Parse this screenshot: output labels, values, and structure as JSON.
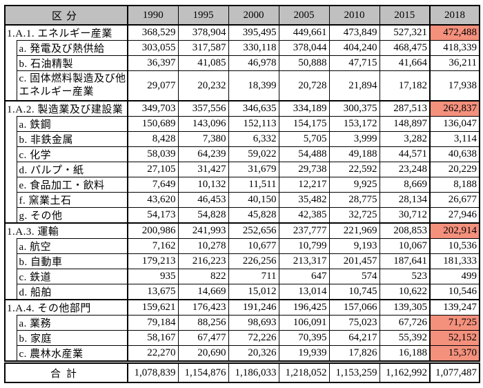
{
  "colors": {
    "header_bg": "#C0C0C0",
    "highlight_2018": "#F4917D",
    "border": "#000000"
  },
  "table": {
    "header": {
      "category_label": "区分",
      "years": [
        "1990",
        "1995",
        "2000",
        "2005",
        "2010",
        "2015",
        "2018"
      ]
    },
    "sections": [
      {
        "label": "1.A.1. エネルギー産業",
        "values": [
          "368,529",
          "378,904",
          "395,495",
          "449,661",
          "473,849",
          "527,321",
          "472,488"
        ],
        "highlight_2018": true,
        "subrows": [
          {
            "label": "a. 発電及び熱供給",
            "values": [
              "303,055",
              "317,587",
              "330,118",
              "378,044",
              "404,240",
              "468,475",
              "418,339"
            ],
            "highlight_2018": false
          },
          {
            "label": "b. 石油精製",
            "values": [
              "36,397",
              "41,085",
              "46,978",
              "50,888",
              "47,715",
              "41,664",
              "36,211"
            ],
            "highlight_2018": false
          },
          {
            "label": "c. 固体燃料製造及び他エネルギー産業",
            "values": [
              "29,077",
              "20,232",
              "18,399",
              "20,728",
              "21,894",
              "17,182",
              "17,938"
            ],
            "highlight_2018": false,
            "tall": true
          }
        ]
      },
      {
        "label": "1.A.2. 製造業及び建設業",
        "values": [
          "349,703",
          "357,556",
          "346,635",
          "334,189",
          "300,375",
          "287,513",
          "262,837"
        ],
        "highlight_2018": true,
        "subrows": [
          {
            "label": "a. 鉄鋼",
            "values": [
              "150,689",
              "143,096",
              "152,113",
              "154,175",
              "153,172",
              "148,897",
              "136,047"
            ],
            "highlight_2018": false
          },
          {
            "label": "b. 非鉄金属",
            "values": [
              "8,428",
              "7,380",
              "6,332",
              "5,705",
              "3,999",
              "3,282",
              "3,114"
            ],
            "highlight_2018": false
          },
          {
            "label": "c. 化学",
            "values": [
              "58,039",
              "64,239",
              "59,022",
              "54,488",
              "49,188",
              "44,571",
              "40,638"
            ],
            "highlight_2018": false
          },
          {
            "label": "d. パルプ・紙",
            "values": [
              "27,105",
              "31,427",
              "31,679",
              "29,738",
              "22,592",
              "23,248",
              "20,229"
            ],
            "highlight_2018": false
          },
          {
            "label": "e. 食品加工・飲料",
            "values": [
              "7,649",
              "10,132",
              "11,511",
              "12,217",
              "9,925",
              "8,669",
              "8,188"
            ],
            "highlight_2018": false
          },
          {
            "label": "f. 窯業土石",
            "values": [
              "43,620",
              "46,453",
              "40,150",
              "35,482",
              "28,775",
              "28,134",
              "26,677"
            ],
            "highlight_2018": false
          },
          {
            "label": "g. その他",
            "values": [
              "54,173",
              "54,828",
              "45,828",
              "42,385",
              "32,725",
              "30,712",
              "27,946"
            ],
            "highlight_2018": false
          }
        ]
      },
      {
        "label": "1.A.3. 運輸",
        "values": [
          "200,986",
          "241,993",
          "252,656",
          "237,777",
          "221,969",
          "208,853",
          "202,914"
        ],
        "highlight_2018": true,
        "subrows": [
          {
            "label": "a. 航空",
            "values": [
              "7,162",
              "10,278",
              "10,677",
              "10,799",
              "9,193",
              "10,067",
              "10,536"
            ],
            "highlight_2018": false
          },
          {
            "label": "b. 自動車",
            "values": [
              "179,213",
              "216,223",
              "226,256",
              "213,317",
              "201,457",
              "187,641",
              "181,333"
            ],
            "highlight_2018": false
          },
          {
            "label": "c. 鉄道",
            "values": [
              "935",
              "822",
              "711",
              "647",
              "574",
              "523",
              "499"
            ],
            "highlight_2018": false
          },
          {
            "label": "d. 船舶",
            "values": [
              "13,675",
              "14,669",
              "15,012",
              "13,014",
              "10,745",
              "10,622",
              "10,546"
            ],
            "highlight_2018": false
          }
        ]
      },
      {
        "label": "1.A.4. その他部門",
        "values": [
          "159,621",
          "176,423",
          "191,246",
          "196,425",
          "157,066",
          "139,305",
          "139,247"
        ],
        "highlight_2018": false,
        "subrows": [
          {
            "label": "a. 業務",
            "values": [
              "79,184",
              "88,256",
              "98,693",
              "106,091",
              "75,023",
              "67,726",
              "71,725"
            ],
            "highlight_2018": true
          },
          {
            "label": "b. 家庭",
            "values": [
              "58,167",
              "67,477",
              "72,226",
              "70,395",
              "64,217",
              "55,392",
              "52,152"
            ],
            "highlight_2018": true
          },
          {
            "label": "c. 農林水産業",
            "values": [
              "22,270",
              "20,690",
              "20,326",
              "19,939",
              "17,826",
              "16,188",
              "15,370"
            ],
            "highlight_2018": true
          }
        ]
      }
    ],
    "total": {
      "label": "合計",
      "values": [
        "1,078,839",
        "1,154,876",
        "1,186,033",
        "1,218,052",
        "1,153,259",
        "1,162,992",
        "1,077,487"
      ]
    }
  }
}
